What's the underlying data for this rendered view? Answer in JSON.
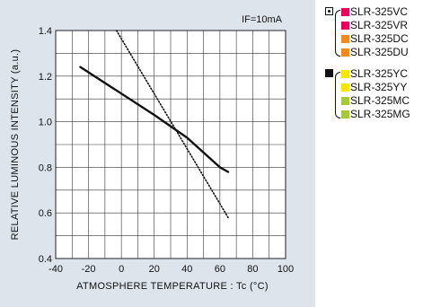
{
  "chart_data": {
    "type": "line",
    "xlabel": "ATMOSPHERE  TEMPERATURE : Tc  (°C)",
    "ylabel": "RELATIVE  LUMINOUS  INTENSITY (a.u.)",
    "annotation": "IF=10mA",
    "xlim": [
      -40,
      100
    ],
    "ylim": [
      0.4,
      1.4
    ],
    "x_ticks": [
      "-40",
      "-20",
      "0",
      "20",
      "40",
      "60",
      "80",
      "100"
    ],
    "y_ticks": [
      "0.4",
      "0.6",
      "0.8",
      "1.0",
      "1.2",
      "1.4"
    ],
    "grid": true,
    "series": [
      {
        "style": "solid",
        "x": [
          -25,
          20,
          40,
          60,
          65
        ],
        "y": [
          1.24,
          1.03,
          0.93,
          0.8,
          0.78
        ]
      },
      {
        "style": "dotted",
        "x": [
          -3,
          65
        ],
        "y": [
          1.4,
          0.58
        ]
      }
    ]
  },
  "legend": {
    "groups": [
      {
        "marker": "dot-square-icon",
        "items": [
          {
            "label": "SLR-325VC",
            "color": "#e8005a"
          },
          {
            "label": "SLR-325VR",
            "color": "#e8005a"
          },
          {
            "label": "SLR-325DC",
            "color": "#f08a1e"
          },
          {
            "label": "SLR-325DU",
            "color": "#f08a1e"
          }
        ]
      },
      {
        "marker": "filled-square-icon",
        "items": [
          {
            "label": "SLR-325YC",
            "color": "#f6e600"
          },
          {
            "label": "SLR-325YY",
            "color": "#f6e600"
          },
          {
            "label": "SLR-325MC",
            "color": "#a8c83c"
          },
          {
            "label": "SLR-325MG",
            "color": "#a8c83c"
          }
        ]
      }
    ]
  }
}
